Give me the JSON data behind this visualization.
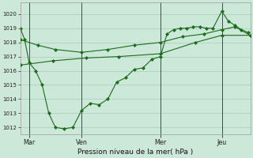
{
  "background_color": "#cce8d8",
  "plot_bg": "#cce8d8",
  "grid_color": "#aaccbb",
  "line_color": "#1a6b1a",
  "title": "Pression niveau de la mer( hPa )",
  "ylim": [
    1011.5,
    1020.8
  ],
  "yticks": [
    1012,
    1013,
    1014,
    1015,
    1016,
    1017,
    1018,
    1019,
    1020
  ],
  "xtick_labels": [
    "Mar",
    "Ven",
    "Mer",
    "Jeu"
  ],
  "vline_x": [
    8,
    56,
    128,
    184
  ],
  "total_points": 210,
  "s1_x": [
    0,
    4,
    8,
    14,
    20,
    26,
    32,
    40,
    48,
    56,
    64,
    72,
    80,
    88,
    96,
    104,
    112,
    120,
    128,
    134,
    140,
    146,
    152,
    158,
    164,
    170,
    176,
    184,
    190,
    196,
    202,
    208
  ],
  "s1_y": [
    1019.0,
    1018.2,
    1016.6,
    1016.0,
    1015.0,
    1013.0,
    1012.0,
    1011.9,
    1012.0,
    1013.2,
    1013.7,
    1013.6,
    1014.0,
    1015.2,
    1015.5,
    1016.1,
    1016.2,
    1016.8,
    1017.0,
    1018.6,
    1018.9,
    1019.0,
    1019.0,
    1019.1,
    1019.1,
    1019.0,
    1019.0,
    1020.2,
    1019.5,
    1019.2,
    1018.9,
    1018.7
  ],
  "s2_x": [
    0,
    16,
    32,
    56,
    80,
    104,
    128,
    148,
    168,
    184,
    196,
    210
  ],
  "s2_y": [
    1018.2,
    1017.8,
    1017.5,
    1017.3,
    1017.5,
    1017.8,
    1018.0,
    1018.4,
    1018.6,
    1018.9,
    1019.1,
    1018.5
  ],
  "s3_x": [
    0,
    30,
    60,
    90,
    128,
    160,
    184,
    210
  ],
  "s3_y": [
    1016.4,
    1016.7,
    1016.9,
    1017.0,
    1017.2,
    1018.0,
    1018.5,
    1018.5
  ]
}
